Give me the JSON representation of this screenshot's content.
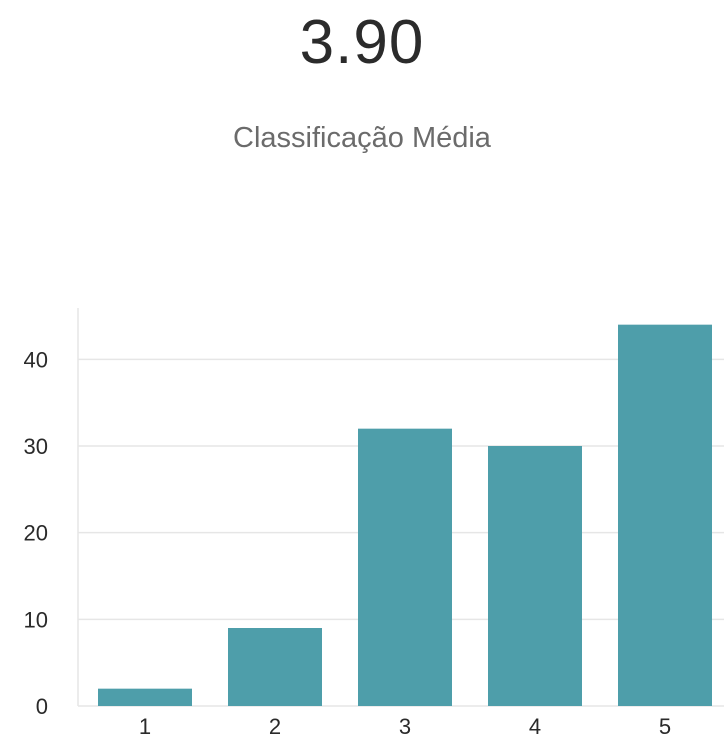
{
  "summary": {
    "average_value": "3.90",
    "average_label": "Classificação Média"
  },
  "chart_data": {
    "type": "bar",
    "categories": [
      "1",
      "2",
      "3",
      "4",
      "5"
    ],
    "values": [
      2,
      9,
      32,
      30,
      44
    ],
    "ylim": [
      0,
      45
    ],
    "yticks": [
      0,
      10,
      20,
      30,
      40
    ],
    "grid": true,
    "bar_color": "#4e9eaa",
    "grid_color": "#e6e6e6"
  }
}
